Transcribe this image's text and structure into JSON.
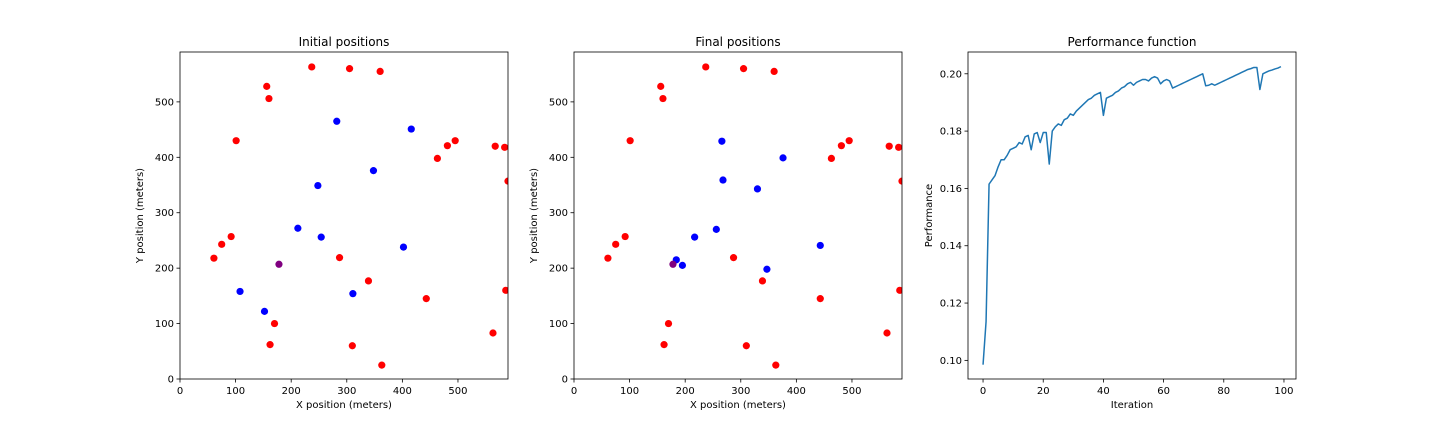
{
  "colors": {
    "red": "#ff0000",
    "blue": "#0000ff",
    "purple": "#800080",
    "line": "#1f77b4",
    "axis": "#000000"
  },
  "chart_data": [
    {
      "type": "scatter",
      "title": "Initial positions",
      "xlabel": "X position (meters)",
      "ylabel": "Y position (meters)",
      "xlim": [
        0,
        590
      ],
      "ylim": [
        0,
        590
      ],
      "xticks": [
        0,
        100,
        200,
        300,
        400,
        500
      ],
      "yticks": [
        0,
        100,
        200,
        300,
        400,
        500
      ],
      "grid": false,
      "series": [
        {
          "color": "red",
          "points": [
            [
              156,
              528
            ],
            [
              160,
              506
            ],
            [
              237,
              563
            ],
            [
              305,
              560
            ],
            [
              360,
              555
            ],
            [
              101,
              430
            ],
            [
              495,
              430
            ],
            [
              481,
              421
            ],
            [
              463,
              398
            ],
            [
              567,
              420
            ],
            [
              584,
              418
            ],
            [
              590,
              357
            ],
            [
              92,
              257
            ],
            [
              75,
              243
            ],
            [
              61,
              218
            ],
            [
              287,
              219
            ],
            [
              339,
              177
            ],
            [
              443,
              145
            ],
            [
              586,
              160
            ],
            [
              170,
              100
            ],
            [
              563,
              83
            ],
            [
              162,
              62
            ],
            [
              310,
              60
            ],
            [
              363,
              25
            ]
          ]
        },
        {
          "color": "blue",
          "points": [
            [
              282,
              465
            ],
            [
              416,
              451
            ],
            [
              348,
              376
            ],
            [
              248,
              349
            ],
            [
              212,
              272
            ],
            [
              254,
              256
            ],
            [
              402,
              238
            ],
            [
              108,
              158
            ],
            [
              311,
              154
            ],
            [
              152,
              122
            ]
          ]
        },
        {
          "color": "purple",
          "points": [
            [
              178,
              207
            ]
          ]
        }
      ]
    },
    {
      "type": "scatter",
      "title": "Final positions",
      "xlabel": "X position (meters)",
      "ylabel": "Y position (meters)",
      "xlim": [
        0,
        590
      ],
      "ylim": [
        0,
        590
      ],
      "xticks": [
        0,
        100,
        200,
        300,
        400,
        500
      ],
      "yticks": [
        0,
        100,
        200,
        300,
        400,
        500
      ],
      "grid": false,
      "series": [
        {
          "color": "red",
          "points": [
            [
              156,
              528
            ],
            [
              160,
              506
            ],
            [
              237,
              563
            ],
            [
              305,
              560
            ],
            [
              360,
              555
            ],
            [
              101,
              430
            ],
            [
              495,
              430
            ],
            [
              481,
              421
            ],
            [
              463,
              398
            ],
            [
              567,
              420
            ],
            [
              584,
              418
            ],
            [
              590,
              357
            ],
            [
              92,
              257
            ],
            [
              75,
              243
            ],
            [
              61,
              218
            ],
            [
              287,
              219
            ],
            [
              339,
              177
            ],
            [
              443,
              145
            ],
            [
              586,
              160
            ],
            [
              170,
              100
            ],
            [
              563,
              83
            ],
            [
              162,
              62
            ],
            [
              310,
              60
            ],
            [
              363,
              25
            ]
          ]
        },
        {
          "color": "blue",
          "points": [
            [
              266,
              429
            ],
            [
              376,
              399
            ],
            [
              268,
              359
            ],
            [
              330,
              343
            ],
            [
              443,
              241
            ],
            [
              256,
              270
            ],
            [
              217,
              256
            ],
            [
              184,
              215
            ],
            [
              195,
              205
            ],
            [
              347,
              198
            ]
          ]
        },
        {
          "color": "purple",
          "points": [
            [
              178,
              207
            ]
          ]
        }
      ]
    },
    {
      "type": "line",
      "title": "Performance function",
      "xlabel": "Iteration",
      "ylabel": "Performance",
      "xlim": [
        -5,
        104
      ],
      "ylim": [
        0.0935,
        0.2076
      ],
      "xticks": [
        0,
        20,
        40,
        60,
        80,
        100
      ],
      "yticks": [
        0.1,
        0.12,
        0.14,
        0.16,
        0.18,
        0.2
      ],
      "ytick_labels": [
        "0.10",
        "0.12",
        "0.14",
        "0.16",
        "0.18",
        "0.20"
      ],
      "grid": false,
      "series": [
        {
          "color": "line",
          "points": [
            [
              0,
              0.0985
            ],
            [
              1,
              0.1135
            ],
            [
              2,
              0.1615
            ],
            [
              3,
              0.163
            ],
            [
              4,
              0.1645
            ],
            [
              5,
              0.1675
            ],
            [
              6,
              0.17
            ],
            [
              7,
              0.17
            ],
            [
              8,
              0.1715
            ],
            [
              9,
              0.1735
            ],
            [
              10,
              0.174
            ],
            [
              11,
              0.1745
            ],
            [
              12,
              0.176
            ],
            [
              13,
              0.1755
            ],
            [
              14,
              0.178
            ],
            [
              15,
              0.1785
            ],
            [
              16,
              0.1735
            ],
            [
              17,
              0.179
            ],
            [
              18,
              0.1795
            ],
            [
              19,
              0.176
            ],
            [
              20,
              0.1795
            ],
            [
              21,
              0.1795
            ],
            [
              22,
              0.1685
            ],
            [
              23,
              0.18
            ],
            [
              24,
              0.1815
            ],
            [
              25,
              0.1825
            ],
            [
              26,
              0.182
            ],
            [
              27,
              0.184
            ],
            [
              28,
              0.1845
            ],
            [
              29,
              0.186
            ],
            [
              30,
              0.1855
            ],
            [
              31,
              0.187
            ],
            [
              32,
              0.188
            ],
            [
              33,
              0.189
            ],
            [
              34,
              0.19
            ],
            [
              35,
              0.191
            ],
            [
              36,
              0.1915
            ],
            [
              37,
              0.1925
            ],
            [
              38,
              0.193
            ],
            [
              39,
              0.1935
            ],
            [
              40,
              0.1855
            ],
            [
              41,
              0.1915
            ],
            [
              42,
              0.192
            ],
            [
              43,
              0.1925
            ],
            [
              44,
              0.1935
            ],
            [
              45,
              0.194
            ],
            [
              46,
              0.195
            ],
            [
              47,
              0.1955
            ],
            [
              48,
              0.1965
            ],
            [
              49,
              0.197
            ],
            [
              50,
              0.196
            ],
            [
              51,
              0.197
            ],
            [
              52,
              0.1975
            ],
            [
              53,
              0.198
            ],
            [
              54,
              0.198
            ],
            [
              55,
              0.1975
            ],
            [
              56,
              0.1985
            ],
            [
              57,
              0.199
            ],
            [
              58,
              0.1985
            ],
            [
              59,
              0.1965
            ],
            [
              60,
              0.1975
            ],
            [
              61,
              0.198
            ],
            [
              62,
              0.1975
            ],
            [
              63,
              0.195
            ],
            [
              64,
              0.1955
            ],
            [
              65,
              0.196
            ],
            [
              66,
              0.1965
            ],
            [
              67,
              0.197
            ],
            [
              68,
              0.1975
            ],
            [
              69,
              0.198
            ],
            [
              70,
              0.1985
            ],
            [
              71,
              0.199
            ],
            [
              72,
              0.1995
            ],
            [
              73,
              0.2
            ],
            [
              74,
              0.1958
            ],
            [
              75,
              0.196
            ],
            [
              76,
              0.1965
            ],
            [
              77,
              0.196
            ],
            [
              78,
              0.1965
            ],
            [
              79,
              0.197
            ],
            [
              80,
              0.1975
            ],
            [
              81,
              0.198
            ],
            [
              82,
              0.1985
            ],
            [
              83,
              0.199
            ],
            [
              84,
              0.1995
            ],
            [
              85,
              0.2
            ],
            [
              86,
              0.2005
            ],
            [
              87,
              0.201
            ],
            [
              88,
              0.2015
            ],
            [
              89,
              0.2018
            ],
            [
              90,
              0.2022
            ],
            [
              91,
              0.2022
            ],
            [
              92,
              0.1945
            ],
            [
              93,
              0.2
            ],
            [
              94,
              0.2005
            ],
            [
              95,
              0.201
            ],
            [
              96,
              0.2013
            ],
            [
              97,
              0.2017
            ],
            [
              98,
              0.202
            ],
            [
              99,
              0.2025
            ]
          ]
        }
      ]
    }
  ]
}
